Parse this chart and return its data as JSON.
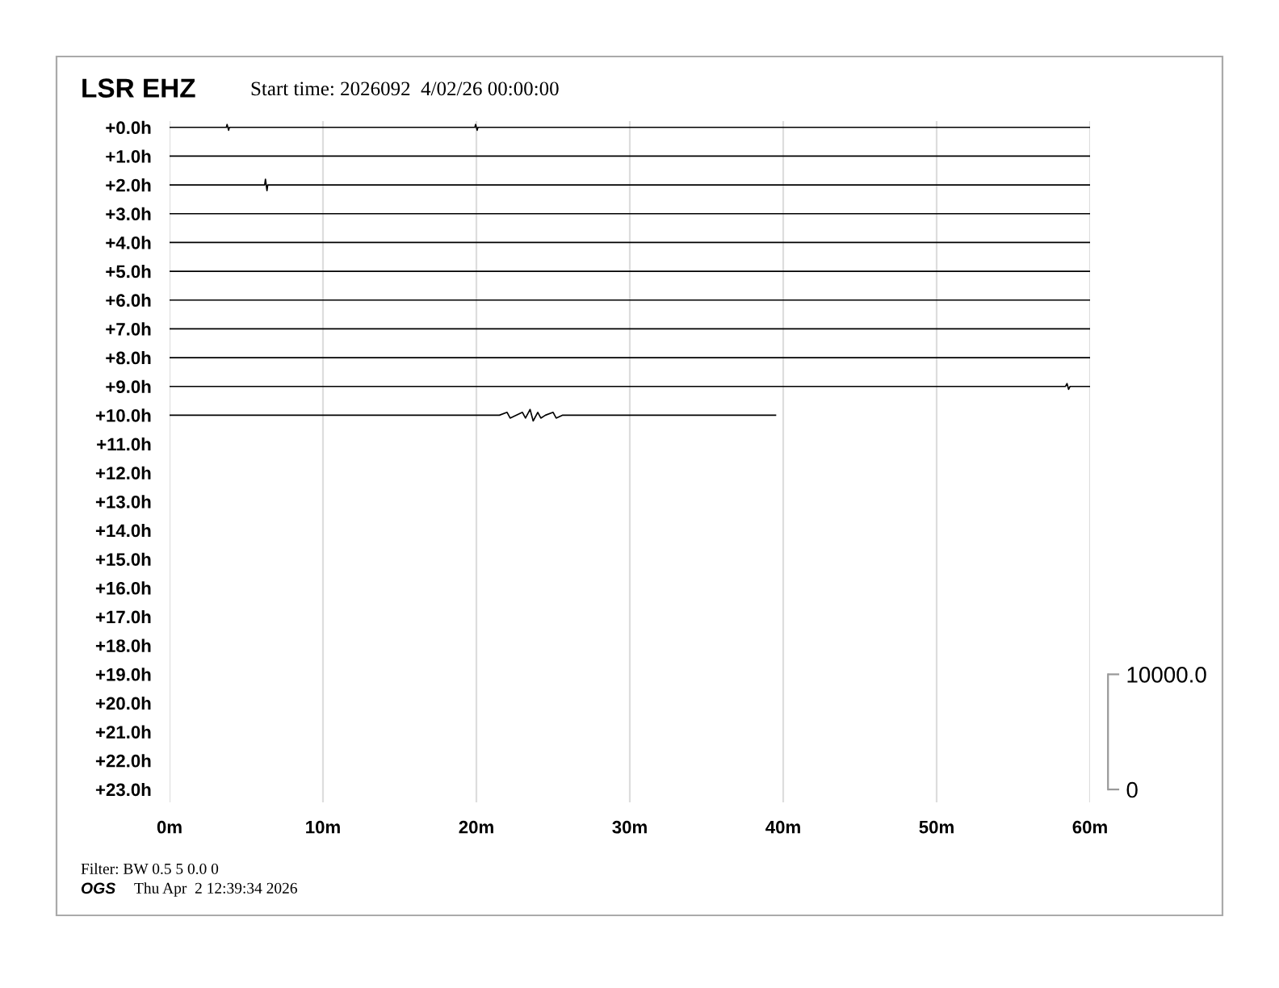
{
  "chart_data": {
    "type": "line",
    "title": "LSR EHZ",
    "subtitle": "Start time: 2026092  4/02/26 00:00:00",
    "annotations": [
      "Filter: BW 0.5 5 0.0 0",
      "OGS",
      "Thu Apr  2 12:39:34 2026"
    ],
    "xlim": [
      0,
      60
    ],
    "xticks": [
      {
        "value": 0,
        "label": "0m"
      },
      {
        "value": 10,
        "label": "10m"
      },
      {
        "value": 20,
        "label": "20m"
      },
      {
        "value": 30,
        "label": "30m"
      },
      {
        "value": 40,
        "label": "40m"
      },
      {
        "value": 50,
        "label": "50m"
      },
      {
        "value": 60,
        "label": "60m"
      }
    ],
    "ylim": [
      23.45,
      -0.22
    ],
    "yticks": [
      {
        "value": 0,
        "label": "+0.0h"
      },
      {
        "value": 1,
        "label": "+1.0h"
      },
      {
        "value": 2,
        "label": "+2.0h"
      },
      {
        "value": 3,
        "label": "+3.0h"
      },
      {
        "value": 4,
        "label": "+4.0h"
      },
      {
        "value": 5,
        "label": "+5.0h"
      },
      {
        "value": 6,
        "label": "+6.0h"
      },
      {
        "value": 7,
        "label": "+7.0h"
      },
      {
        "value": 8,
        "label": "+8.0h"
      },
      {
        "value": 9,
        "label": "+9.0h"
      },
      {
        "value": 10,
        "label": "+10.0h"
      },
      {
        "value": 11,
        "label": "+11.0h"
      },
      {
        "value": 12,
        "label": "+12.0h"
      },
      {
        "value": 13,
        "label": "+13.0h"
      },
      {
        "value": 14,
        "label": "+14.0h"
      },
      {
        "value": 15,
        "label": "+15.0h"
      },
      {
        "value": 16,
        "label": "+16.0h"
      },
      {
        "value": 17,
        "label": "+17.0h"
      },
      {
        "value": 18,
        "label": "+18.0h"
      },
      {
        "value": 19,
        "label": "+19.0h"
      },
      {
        "value": 20,
        "label": "+20.0h"
      },
      {
        "value": 21,
        "label": "+21.0h"
      },
      {
        "value": 22,
        "label": "+22.0h"
      },
      {
        "value": 23,
        "label": "+23.0h"
      }
    ],
    "y2lim": [
      -1120,
      58060
    ],
    "y2ticks": [
      0,
      {
        "value": 10000,
        "label": "10000.0"
      }
    ],
    "grid": "x",
    "series": [
      {
        "color": "#000000",
        "x": [
          0,
          3.7,
          3.75,
          3.85,
          3.9,
          19.9,
          19.95,
          20.05,
          20.1,
          60
        ],
        "values": [
          0,
          0,
          -0.1,
          0.1,
          0,
          0,
          -0.1,
          0.1,
          0,
          0
        ]
      },
      {
        "color": "#000000",
        "x": [
          0,
          60
        ],
        "values": [
          1,
          1
        ]
      },
      {
        "color": "#000000",
        "x": [
          0,
          6.2,
          6.25,
          6.35,
          6.4,
          60
        ],
        "values": [
          2,
          2,
          1.8,
          2.2,
          2,
          2
        ]
      },
      {
        "color": "#000000",
        "x": [
          0,
          60
        ],
        "values": [
          3,
          3
        ]
      },
      {
        "color": "#000000",
        "x": [
          0,
          60
        ],
        "values": [
          4,
          4
        ]
      },
      {
        "color": "#000000",
        "x": [
          0,
          60
        ],
        "values": [
          5,
          5
        ]
      },
      {
        "color": "#000000",
        "x": [
          0,
          60
        ],
        "values": [
          6,
          6
        ]
      },
      {
        "color": "#000000",
        "x": [
          0,
          60
        ],
        "values": [
          7,
          7
        ]
      },
      {
        "color": "#000000",
        "x": [
          0,
          60
        ],
        "values": [
          8,
          8
        ]
      },
      {
        "color": "#000000",
        "x": [
          0,
          58.4,
          58.5,
          58.6,
          58.7,
          60
        ],
        "values": [
          9,
          9,
          8.9,
          9.1,
          9,
          9
        ]
      },
      {
        "color": "#000000",
        "x": [
          0,
          21.5,
          22.0,
          22.2,
          23.0,
          23.2,
          23.5,
          23.7,
          24.0,
          24.2,
          24.5,
          25.0,
          25.2,
          25.6,
          39.5
        ],
        "values": [
          10,
          10,
          9.9,
          10.1,
          9.9,
          10.1,
          9.8,
          10.2,
          9.9,
          10.1,
          10,
          9.9,
          10.1,
          10,
          10
        ]
      }
    ]
  }
}
